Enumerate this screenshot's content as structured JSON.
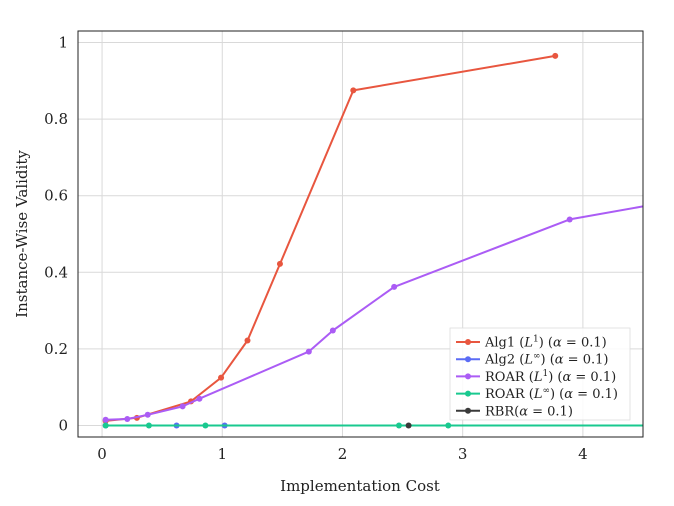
{
  "chart_data": {
    "type": "line",
    "title": "",
    "xlabel": "Implementation Cost",
    "ylabel": "Instance-Wise Validity",
    "xlim": [
      -0.2,
      4.5
    ],
    "ylim": [
      -0.03,
      1.03
    ],
    "xticks": [
      0,
      1,
      2,
      3,
      4
    ],
    "yticks": [
      0,
      0.2,
      0.4,
      0.6,
      0.8,
      1
    ],
    "xtick_labels": [
      "0",
      "1",
      "2",
      "3",
      "4"
    ],
    "ytick_labels": [
      "0",
      "0.2",
      "0.4",
      "0.6",
      "0.8",
      "1"
    ],
    "grid": true,
    "legend_position": "bottom-right",
    "series": [
      {
        "name": "Alg1 (L¹) (α = 0.1)",
        "legend_parts": {
          "pre": "Alg1 (",
          "var": "L",
          "sup": "1",
          "mid": ") (",
          "greek": "α",
          "post": " = 0.1)"
        },
        "color": "#e8563f",
        "x": [
          0.03,
          0.29,
          0.74,
          0.99,
          1.21,
          1.48,
          2.09,
          3.77
        ],
        "y": [
          0.012,
          0.02,
          0.063,
          0.125,
          0.222,
          0.422,
          0.875,
          0.965
        ]
      },
      {
        "name": "Alg2 (L∞) (α = 0.1)",
        "legend_parts": {
          "pre": "Alg2 (",
          "var": "L",
          "sup": "∞",
          "mid": ") (",
          "greek": "α",
          "post": " = 0.1)"
        },
        "color": "#5b6cf5",
        "x": [
          0.03,
          0.62,
          1.02
        ],
        "y": [
          0,
          0,
          0
        ]
      },
      {
        "name": "ROAR (L¹) (α = 0.1)",
        "legend_parts": {
          "pre": "ROAR (",
          "var": "L",
          "sup": "1",
          "mid": ") (",
          "greek": "α",
          "post": " = 0.1)"
        },
        "color": "#ab5cf5",
        "x": [
          0.03,
          0.21,
          0.38,
          0.67,
          0.81,
          1.72,
          1.92,
          2.43,
          3.89,
          4.5
        ],
        "y": [
          0.015,
          0.017,
          0.028,
          0.05,
          0.07,
          0.193,
          0.248,
          0.362,
          0.538,
          0.572
        ]
      },
      {
        "name": "ROAR (L∞) (α = 0.1)",
        "legend_parts": {
          "pre": "ROAR (",
          "var": "L",
          "sup": "∞",
          "mid": ") (",
          "greek": "α",
          "post": " = 0.1)"
        },
        "color": "#19c98f",
        "x": [
          0.03,
          0.39,
          0.86,
          2.47,
          2.88,
          4.5
        ],
        "y": [
          0,
          0,
          0,
          0,
          0,
          0
        ]
      },
      {
        "name": "RBR(α = 0.1)",
        "legend_parts": {
          "pre": "RBR(",
          "var": "",
          "sup": "",
          "mid": "",
          "greek": "α",
          "post": " = 0.1)"
        },
        "color": "#3a3a3a",
        "x": [
          2.55
        ],
        "y": [
          0
        ]
      }
    ]
  }
}
